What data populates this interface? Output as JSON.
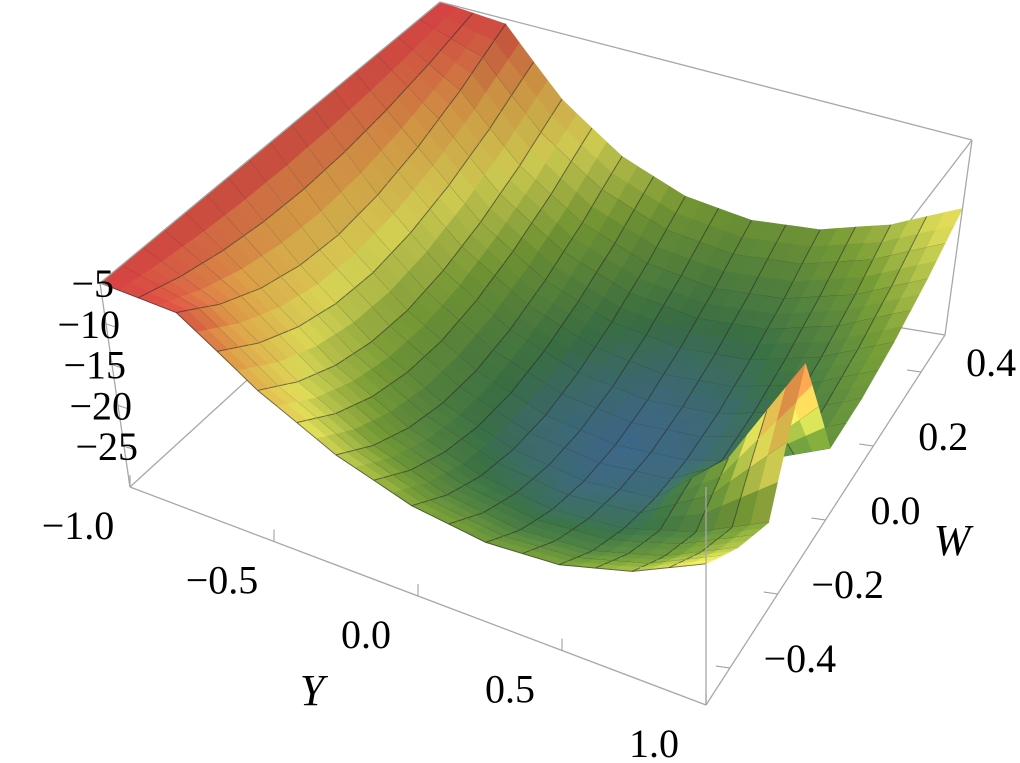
{
  "chart_data": {
    "type": "surface",
    "xlabel": "Y",
    "ylabel": "W",
    "zlabel": "",
    "xlim": [
      -1,
      1
    ],
    "ylim": [
      -0.5,
      0.5
    ],
    "zlim": [
      -30,
      -5
    ],
    "x_ticks": [
      "−1.0",
      "−0.5",
      "0.0",
      "0.5",
      "1.0"
    ],
    "x_tick_values": [
      -1,
      -0.5,
      0,
      0.5,
      1
    ],
    "y_ticks": [
      "−0.4",
      "−0.2",
      "0.0",
      "0.2",
      "0.4"
    ],
    "y_tick_values": [
      -0.4,
      -0.2,
      0,
      0.2,
      0.4
    ],
    "z_ticks": [
      "−5",
      "−10",
      "−15",
      "−20",
      "−25"
    ],
    "z_tick_values": [
      -5,
      -10,
      -15,
      -20,
      -25
    ],
    "colormap": [
      "#4466c4",
      "#3f7a4a",
      "#7fa83a",
      "#f4f060",
      "#f6b050",
      "#e84848"
    ],
    "mesh": true,
    "x": [
      -1,
      -0.75,
      -0.5,
      -0.25,
      0,
      0.25,
      0.5,
      0.75,
      1
    ],
    "y": [
      -0.5,
      -0.375,
      -0.25,
      -0.125,
      0,
      0.125,
      0.25,
      0.375,
      0.5
    ],
    "z": [
      [
        -5,
        -5,
        -5,
        -5,
        -5,
        -5,
        -5,
        -5,
        -5
      ],
      [
        -5.5,
        -8.8,
        -11.1,
        -12.5,
        -13,
        -12.5,
        -11.1,
        -8.8,
        -5.5
      ],
      [
        -11.8,
        -15.1,
        -17.4,
        -18.8,
        -19.3,
        -18.8,
        -17.4,
        -15.1,
        -11.8
      ],
      [
        -16.4,
        -19.7,
        -22.0,
        -23.4,
        -23.9,
        -23.4,
        -22.0,
        -19.7,
        -16.4
      ],
      [
        -19.3,
        -22.6,
        -24.9,
        -26.3,
        -26.8,
        -26.3,
        -24.9,
        -22.6,
        -19.3
      ],
      [
        -20.5,
        -23.8,
        -26.1,
        -27.5,
        -28,
        -27.5,
        -26.1,
        -23.8,
        -20.5
      ],
      [
        -20,
        -23.3,
        -25.6,
        -27,
        -27.5,
        -27,
        -25.6,
        -23.3,
        -20
      ],
      [
        -17.7,
        -21,
        -23.3,
        -19.7,
        -25.2,
        -24.7,
        -23.3,
        -21,
        -17.7
      ],
      [
        -13.8,
        -17.1,
        -19.4,
        -5.8,
        -21.3,
        -20.8,
        -19.4,
        -17.1,
        -13.8
      ]
    ]
  }
}
